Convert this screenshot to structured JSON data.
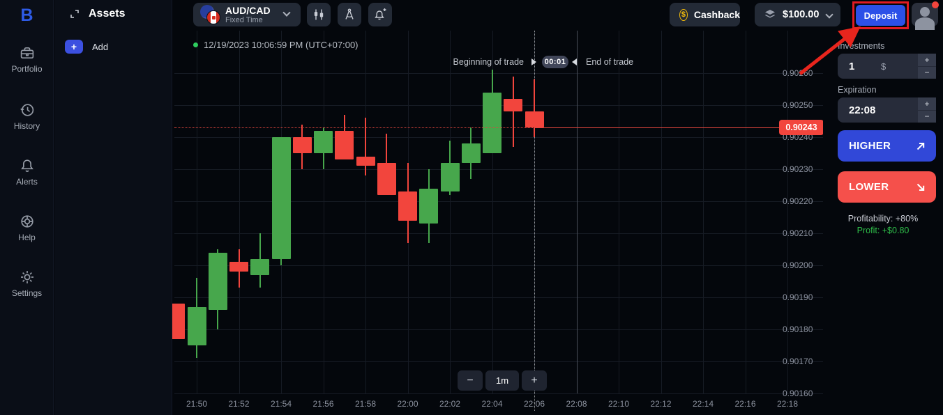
{
  "sidebar": {
    "logo": "B",
    "items": [
      {
        "label": "Portfolio",
        "icon": "briefcase-icon"
      },
      {
        "label": "History",
        "icon": "history-icon"
      },
      {
        "label": "Alerts",
        "icon": "bell-icon"
      },
      {
        "label": "Help",
        "icon": "lifebuoy-icon"
      },
      {
        "label": "Settings",
        "icon": "gear-icon"
      }
    ]
  },
  "assets_panel": {
    "title": "Assets",
    "add_label": "Add"
  },
  "topbar": {
    "asset": {
      "pair": "AUD/CAD",
      "mode": "Fixed Time"
    },
    "cashback_label": "Cashback",
    "balance": "$100.00",
    "deposit_label": "Deposit"
  },
  "chart": {
    "timestamp": "12/19/2023 10:06:59 PM (UTC+07:00)",
    "begin_label": "Beginning of trade",
    "countdown": "00:01",
    "end_label": "End of trade",
    "current_price_label": "0.90243",
    "interval": "1m",
    "zoom_out_label": "−",
    "zoom_in_label": "+"
  },
  "chart_data": {
    "type": "candlestick",
    "title": "AUD/CAD Fixed Time, 1m candles",
    "x_ticks": [
      "21:50",
      "21:52",
      "21:54",
      "21:56",
      "21:58",
      "22:00",
      "22:02",
      "22:04",
      "22:06",
      "22:08",
      "22:10",
      "22:12",
      "22:14",
      "22:16",
      "22:18"
    ],
    "y_ticks": [
      "0.90260",
      "0.90250",
      "0.90240",
      "0.90230",
      "0.90220",
      "0.90210",
      "0.90200",
      "0.90190",
      "0.90180",
      "0.90170",
      "0.90160"
    ],
    "ylim": [
      0.90155,
      0.90265
    ],
    "grid": true,
    "current_price": 0.90243,
    "trade_begin_time": "22:06",
    "trade_end_time": "22:08",
    "candles": [
      {
        "time": "21:49",
        "open": 0.90188,
        "high": 0.90188,
        "low": 0.90177,
        "close": 0.90177
      },
      {
        "time": "21:50",
        "open": 0.90175,
        "high": 0.90196,
        "low": 0.90171,
        "close": 0.90187
      },
      {
        "time": "21:51",
        "open": 0.90186,
        "high": 0.90205,
        "low": 0.9018,
        "close": 0.90204
      },
      {
        "time": "21:52",
        "open": 0.90201,
        "high": 0.90205,
        "low": 0.90193,
        "close": 0.90198
      },
      {
        "time": "21:53",
        "open": 0.90197,
        "high": 0.9021,
        "low": 0.90193,
        "close": 0.90202
      },
      {
        "time": "21:54",
        "open": 0.90202,
        "high": 0.9024,
        "low": 0.902,
        "close": 0.9024
      },
      {
        "time": "21:55",
        "open": 0.9024,
        "high": 0.90244,
        "low": 0.9023,
        "close": 0.90235
      },
      {
        "time": "21:56",
        "open": 0.90235,
        "high": 0.90243,
        "low": 0.9023,
        "close": 0.90242
      },
      {
        "time": "21:57",
        "open": 0.90242,
        "high": 0.90247,
        "low": 0.90233,
        "close": 0.90233
      },
      {
        "time": "21:58",
        "open": 0.90234,
        "high": 0.90246,
        "low": 0.90228,
        "close": 0.90231
      },
      {
        "time": "21:59",
        "open": 0.90232,
        "high": 0.90241,
        "low": 0.90222,
        "close": 0.90222
      },
      {
        "time": "22:00",
        "open": 0.90223,
        "high": 0.90232,
        "low": 0.90207,
        "close": 0.90214
      },
      {
        "time": "22:01",
        "open": 0.90213,
        "high": 0.9023,
        "low": 0.90207,
        "close": 0.90224
      },
      {
        "time": "22:02",
        "open": 0.90223,
        "high": 0.90239,
        "low": 0.90222,
        "close": 0.90232
      },
      {
        "time": "22:03",
        "open": 0.90232,
        "high": 0.90243,
        "low": 0.90227,
        "close": 0.90238
      },
      {
        "time": "22:04",
        "open": 0.90235,
        "high": 0.90261,
        "low": 0.90235,
        "close": 0.90254
      },
      {
        "time": "22:05",
        "open": 0.90252,
        "high": 0.90259,
        "low": 0.90237,
        "close": 0.90248
      },
      {
        "time": "22:06",
        "open": 0.90248,
        "high": 0.90258,
        "low": 0.9024,
        "close": 0.90243
      }
    ]
  },
  "trade_panel": {
    "investments_label": "Investments",
    "investment_value": "1",
    "currency_symbol": "$",
    "stepper_plus": "+",
    "stepper_minus": "−",
    "expiration_label": "Expiration",
    "expiration_value": "22:08",
    "higher_label": "HIGHER",
    "lower_label": "LOWER",
    "profitability": "Profitability: +80%",
    "profit": "Profit: +$0.80"
  },
  "colors": {
    "candle_up": "#47a74c",
    "candle_down": "#f2453d",
    "accent_blue": "#2c50e8",
    "higher_blue": "#3148d8",
    "lower_red": "#f5504b",
    "profit_green": "#2fbf4a",
    "cashback_gold": "#f0b90b",
    "price_tag_red": "#f2453d",
    "annotation_red": "#e8251d"
  }
}
